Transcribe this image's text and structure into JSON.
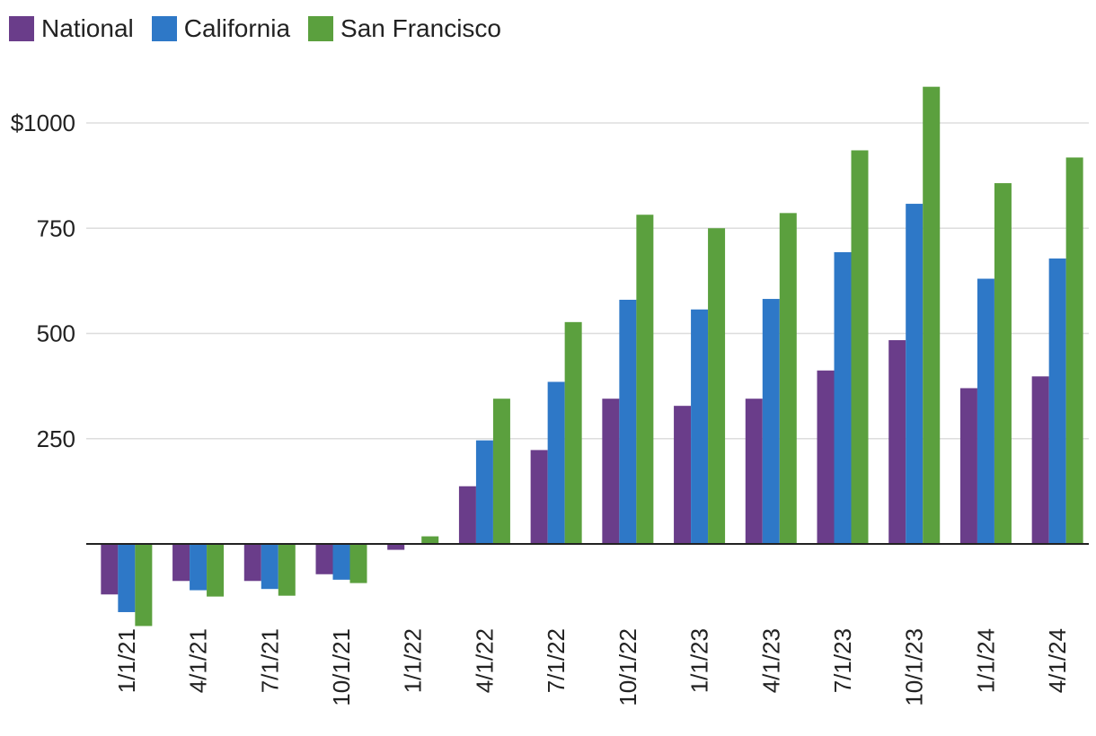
{
  "chart_data": {
    "type": "bar",
    "title": "",
    "xlabel": "",
    "ylabel": "",
    "categories": [
      "1/1/21",
      "4/1/21",
      "7/1/21",
      "10/1/21",
      "1/1/22",
      "4/1/22",
      "7/1/22",
      "10/1/22",
      "1/1/23",
      "4/1/23",
      "7/1/23",
      "10/1/23",
      "1/1/24",
      "4/1/24"
    ],
    "series": [
      {
        "name": "National",
        "color": "#6a3d8a",
        "values": [
          -120,
          -88,
          -88,
          -72,
          -14,
          137,
          223,
          345,
          328,
          345,
          412,
          484,
          370,
          398
        ]
      },
      {
        "name": "California",
        "color": "#2e78c7",
        "values": [
          -162,
          -110,
          -107,
          -85,
          0,
          246,
          385,
          580,
          557,
          582,
          693,
          808,
          630,
          678
        ]
      },
      {
        "name": "San Francisco",
        "color": "#5ba03e",
        "values": [
          -195,
          -125,
          -123,
          -93,
          18,
          345,
          527,
          782,
          750,
          786,
          935,
          1086,
          857,
          918
        ]
      }
    ],
    "y_ticks": [
      {
        "value": 1000,
        "label": "$1000"
      },
      {
        "value": 750,
        "label": "750"
      },
      {
        "value": 500,
        "label": "500"
      },
      {
        "value": 250,
        "label": "250"
      }
    ],
    "ylim": [
      -230,
      1150
    ],
    "grid": true,
    "legend_position": "top-left"
  }
}
